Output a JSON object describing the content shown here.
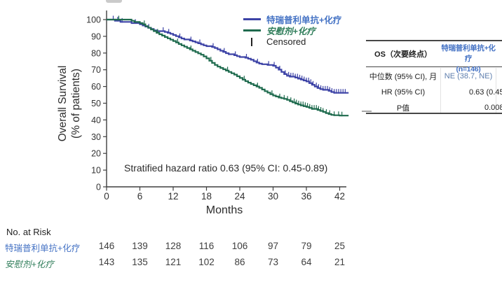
{
  "colors": {
    "curve_blue": "#3d43a6",
    "curve_green": "#1f6b4e",
    "text_blue": "#4472c4",
    "text_green": "#2f7d5a",
    "median_value_blue": "#5d7dad",
    "axis": "#3f3f3f"
  },
  "chart_data": {
    "type": "line",
    "subtype": "kaplan-meier-step",
    "xlabel": "Months",
    "ylabel_line1": "Overall Survival",
    "ylabel_line2": "(% of patients)",
    "x_ticks": [
      0,
      6,
      12,
      18,
      24,
      30,
      36,
      42
    ],
    "y_ticks": [
      100,
      90,
      80,
      70,
      60,
      50,
      40,
      30,
      20,
      10,
      0
    ],
    "xlim": [
      0,
      43.6
    ],
    "ylim": [
      0,
      100
    ],
    "grid": false,
    "legend_position": "top-right-inside",
    "annotation": "Stratified hazard ratio 0.63 (95% CI: 0.45-0.89)",
    "legend": {
      "censored_label": "Censored"
    },
    "series": [
      {
        "key": "toripalimab-chemo",
        "name": "特瑞普利单抗+化疗",
        "color": "#3d43a6",
        "label_color": "#4472c4",
        "points": [
          [
            0,
            100
          ],
          [
            1.5,
            99.3
          ],
          [
            2.5,
            98.6
          ],
          [
            4.5,
            97.9
          ],
          [
            6,
            97.2
          ],
          [
            6.5,
            96.5
          ],
          [
            7,
            95.8
          ],
          [
            7.5,
            95.1
          ],
          [
            8,
            94.4
          ],
          [
            8.5,
            93.6
          ],
          [
            9,
            93.1
          ],
          [
            10.5,
            92.6
          ],
          [
            11,
            92.1
          ],
          [
            11.5,
            91.5
          ],
          [
            12,
            90.8
          ],
          [
            12.5,
            90.1
          ],
          [
            13,
            89.4
          ],
          [
            13.5,
            88.7
          ],
          [
            14,
            88.1
          ],
          [
            15,
            87.5
          ],
          [
            15.5,
            87
          ],
          [
            16,
            86.4
          ],
          [
            16.5,
            85.8
          ],
          [
            17,
            85.2
          ],
          [
            17.5,
            84.6
          ],
          [
            18,
            84.1
          ],
          [
            19,
            83.6
          ],
          [
            19.5,
            83
          ],
          [
            20,
            82.2
          ],
          [
            20.5,
            81.4
          ],
          [
            21,
            80.7
          ],
          [
            21.5,
            79.9
          ],
          [
            22,
            79.3
          ],
          [
            23,
            78.7
          ],
          [
            23.5,
            78.1
          ],
          [
            24,
            77.6
          ],
          [
            25,
            77.2
          ],
          [
            25.5,
            76.6
          ],
          [
            26,
            76
          ],
          [
            26.5,
            75.1
          ],
          [
            27,
            74.3
          ],
          [
            27.5,
            73.7
          ],
          [
            28,
            73.3
          ],
          [
            29,
            72.9
          ],
          [
            30,
            72.4
          ],
          [
            30.5,
            71.3
          ],
          [
            31,
            70.1
          ],
          [
            31.5,
            68.7
          ],
          [
            32,
            67.4
          ],
          [
            32.5,
            66.4
          ],
          [
            33,
            65.9
          ],
          [
            34,
            65.3
          ],
          [
            34.5,
            64.7
          ],
          [
            35,
            64.2
          ],
          [
            35.5,
            63.6
          ],
          [
            36,
            63
          ],
          [
            36.5,
            62
          ],
          [
            37,
            61
          ],
          [
            37.5,
            60
          ],
          [
            38,
            59.1
          ],
          [
            38.5,
            58.4
          ],
          [
            39,
            58
          ],
          [
            40,
            57.4
          ],
          [
            40.5,
            56.7
          ],
          [
            41,
            56.2
          ],
          [
            43.6,
            56.2
          ]
        ],
        "censor_months": [
          1.2,
          2,
          2.8,
          5.2,
          7.6,
          10.2,
          11.2,
          13.2,
          15.2,
          16.8,
          19.2,
          21.2,
          23.2,
          25.2,
          27.2,
          29.2,
          30.2,
          31.2,
          32.2,
          32.8,
          33.2,
          33.6,
          34,
          34.4,
          34.8,
          35.2,
          35.6,
          36,
          36.4,
          36.8,
          37.2,
          37.8,
          38.2,
          38.6,
          39,
          39.4,
          39.8,
          40.2,
          40.6,
          41,
          41.4,
          41.8,
          42.2,
          42.6,
          43
        ]
      },
      {
        "key": "placebo-chemo",
        "name": "安慰剂+化疗",
        "color": "#1f6b4e",
        "label_color": "#2f7d5a",
        "points": [
          [
            0,
            100
          ],
          [
            4,
            100
          ],
          [
            4.5,
            99.3
          ],
          [
            5,
            98.6
          ],
          [
            6,
            97.9
          ],
          [
            6.5,
            97.2
          ],
          [
            7,
            96.1
          ],
          [
            7.5,
            95.1
          ],
          [
            8,
            94.1
          ],
          [
            8.5,
            93.1
          ],
          [
            9,
            92.1
          ],
          [
            9.5,
            91.2
          ],
          [
            10,
            90.4
          ],
          [
            10.5,
            89.6
          ],
          [
            11,
            88.8
          ],
          [
            11.5,
            88
          ],
          [
            12,
            87.2
          ],
          [
            12.5,
            86.3
          ],
          [
            13,
            85.4
          ],
          [
            13.5,
            84.6
          ],
          [
            14,
            83.8
          ],
          [
            14.5,
            83
          ],
          [
            15,
            82.2
          ],
          [
            15.5,
            81.4
          ],
          [
            16,
            80.6
          ],
          [
            16.5,
            79.8
          ],
          [
            17,
            79
          ],
          [
            17.5,
            78
          ],
          [
            18,
            76.8
          ],
          [
            18.5,
            75.4
          ],
          [
            19,
            74.1
          ],
          [
            19.5,
            72.9
          ],
          [
            20,
            71.9
          ],
          [
            20.5,
            71.1
          ],
          [
            21,
            70.3
          ],
          [
            21.5,
            69.5
          ],
          [
            22,
            68.7
          ],
          [
            22.5,
            67.9
          ],
          [
            23,
            67.1
          ],
          [
            23.5,
            66.1
          ],
          [
            24,
            65.1
          ],
          [
            24.5,
            64.1
          ],
          [
            25,
            63.2
          ],
          [
            25.5,
            62.3
          ],
          [
            26,
            61.5
          ],
          [
            26.5,
            60.7
          ],
          [
            27,
            60
          ],
          [
            27.5,
            59.2
          ],
          [
            28,
            58.2
          ],
          [
            28.5,
            57.2
          ],
          [
            29,
            56.3
          ],
          [
            29.5,
            55.4
          ],
          [
            30,
            54.6
          ],
          [
            30.5,
            54
          ],
          [
            31,
            53.4
          ],
          [
            31.5,
            53
          ],
          [
            32,
            52.6
          ],
          [
            32.5,
            52
          ],
          [
            33,
            51.2
          ],
          [
            33.5,
            50.5
          ],
          [
            34,
            49.8
          ],
          [
            34.5,
            49.2
          ],
          [
            35,
            48.7
          ],
          [
            35.5,
            48.2
          ],
          [
            36,
            47.8
          ],
          [
            36.5,
            47.2
          ],
          [
            37,
            46.6
          ],
          [
            38,
            46
          ],
          [
            38.5,
            45.4
          ],
          [
            39,
            44.8
          ],
          [
            39.5,
            44.1
          ],
          [
            40,
            43.5
          ],
          [
            40.5,
            43
          ],
          [
            41,
            42.8
          ],
          [
            42,
            42.6
          ],
          [
            43.6,
            42.6
          ]
        ],
        "censor_months": [
          2.2,
          6.8,
          9.2,
          12.8,
          15.2,
          18.8,
          21.8,
          24.8,
          27.2,
          29.8,
          31.2,
          32,
          32.6,
          33.2,
          33.8,
          34.2,
          34.6,
          35,
          35.4,
          35.8,
          36.2,
          36.6,
          37,
          37.4,
          37.8,
          38.2,
          38.6,
          39,
          39.6,
          40.2,
          41,
          41.8,
          42.4
        ]
      }
    ]
  },
  "risk_table": {
    "title": "No. at Risk",
    "months": [
      0,
      6,
      12,
      18,
      24,
      30,
      36,
      42
    ],
    "rows": [
      {
        "key": "toripalimab-chemo",
        "label": "特瑞普利单抗+化疗",
        "color": "#4472c4",
        "values": [
          146,
          139,
          128,
          116,
          106,
          97,
          79,
          25
        ]
      },
      {
        "key": "placebo-chemo",
        "label": "安慰剂+化疗",
        "color": "#2f7d5a",
        "values": [
          143,
          135,
          121,
          102,
          86,
          73,
          64,
          21
        ]
      }
    ]
  },
  "stats_table": {
    "header_col1": "OS（次要终点）",
    "header_col2_line1": "特瑞普利单抗+化疗",
    "header_col2_line2": "(n=146)",
    "rows": [
      {
        "label": "中位数 (95% CI), 月",
        "value": "NE (38.7, NE)",
        "value_color": "#5d7dad"
      },
      {
        "label": "HR (95% CI)",
        "value": "0.63 (0.45",
        "value_color": "#1c1c1c"
      },
      {
        "label": "P值",
        "value": "0.008",
        "value_color": "#1c1c1c"
      }
    ]
  }
}
